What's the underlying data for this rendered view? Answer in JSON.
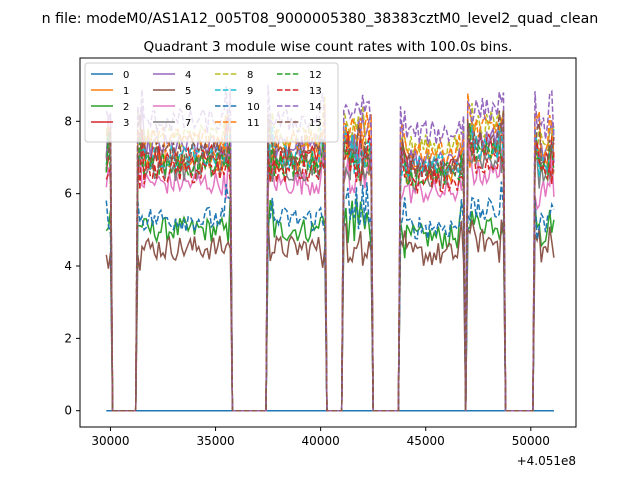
{
  "figure": {
    "suptitle": "n file: modeM0/AS1A12_005T08_9000005380_38383cztM0_level2_quad_clean",
    "title": "Quadrant 3 module wise count rates with 100.0s bins.",
    "x_offset_label": "+4.051e8"
  },
  "chart_data": {
    "type": "line",
    "title": "Quadrant 3 module wise count rates with 100.0s bins.",
    "xlabel": "",
    "ylabel": "",
    "x_offset": 405100000,
    "xlim": [
      28550,
      52150
    ],
    "ylim": [
      -0.45,
      9.75
    ],
    "xticks": [
      30000,
      35000,
      40000,
      45000,
      50000
    ],
    "xtick_labels": [
      "30000",
      "35000",
      "40000",
      "45000",
      "50000"
    ],
    "yticks": [
      0,
      2,
      4,
      6,
      8
    ],
    "ytick_labels": [
      "0",
      "2",
      "4",
      "6",
      "8"
    ],
    "legend_position": "upper-left",
    "x_start": 29800,
    "x_end": 51100,
    "bin": 100,
    "on_segments": [
      [
        29800,
        30000,
        5.0
      ],
      [
        31300,
        35700,
        5.0
      ],
      [
        37500,
        40200,
        5.0
      ],
      [
        41100,
        41700,
        5.0
      ],
      [
        41800,
        42400,
        5.0
      ],
      [
        43800,
        46800,
        4.8
      ],
      [
        47000,
        48700,
        5.2
      ],
      [
        50200,
        51100,
        4.9
      ]
    ],
    "series": [
      {
        "name": "0",
        "color": "#1f77b4",
        "style": "solid",
        "level": 0
      },
      {
        "name": "1",
        "color": "#ff7f0e",
        "style": "solid",
        "level": 6.9
      },
      {
        "name": "2",
        "color": "#2ca02c",
        "style": "solid",
        "level": 5.0
      },
      {
        "name": "3",
        "color": "#d62728",
        "style": "solid",
        "level": 7.0
      },
      {
        "name": "4",
        "color": "#9467bd",
        "style": "solid",
        "level": 7.3
      },
      {
        "name": "5",
        "color": "#8c564b",
        "style": "solid",
        "level": 4.5
      },
      {
        "name": "6",
        "color": "#e377c2",
        "style": "solid",
        "level": 6.3
      },
      {
        "name": "7",
        "color": "#7f7f7f",
        "style": "solid",
        "level": 6.7
      },
      {
        "name": "8",
        "color": "#bcbd22",
        "style": "dashed",
        "level": 7.6
      },
      {
        "name": "9",
        "color": "#17becf",
        "style": "dashed",
        "level": 7.0
      },
      {
        "name": "10",
        "color": "#1f77b4",
        "style": "dashed",
        "level": 5.3
      },
      {
        "name": "11",
        "color": "#ff7f0e",
        "style": "dashed",
        "level": 7.5
      },
      {
        "name": "12",
        "color": "#2ca02c",
        "style": "dashed",
        "level": 6.8
      },
      {
        "name": "13",
        "color": "#d62728",
        "style": "dashed",
        "level": 6.6
      },
      {
        "name": "14",
        "color": "#9467bd",
        "style": "dashed",
        "level": 8.0
      },
      {
        "name": "15",
        "color": "#8c564b",
        "style": "dashed",
        "level": 7.1
      }
    ]
  }
}
